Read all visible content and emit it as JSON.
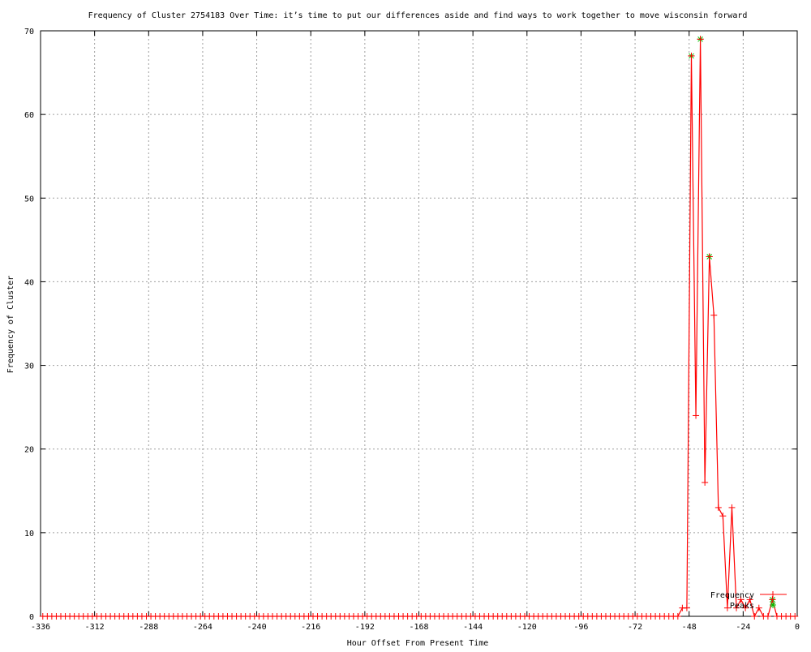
{
  "chart_data": {
    "type": "line",
    "title": "Frequency of Cluster 2754183 Over Time: it’s time to put our differences aside and find ways to work together to move wisconsin forward",
    "xlabel": "Hour Offset From Present Time",
    "ylabel": "Frequency of Cluster",
    "xlim": [
      -336,
      0
    ],
    "ylim": [
      0,
      70
    ],
    "xticks": [
      -336,
      -312,
      -288,
      -264,
      -240,
      -216,
      -192,
      -168,
      -144,
      -120,
      -96,
      -72,
      -48,
      -24,
      0
    ],
    "yticks": [
      0,
      10,
      20,
      30,
      40,
      50,
      60,
      70
    ],
    "grid": true,
    "legend_placement": "bottom-right",
    "colors": {
      "frequency": "#ff0000",
      "peaks": "#00c000",
      "grid": "#a0a0a0"
    },
    "series": [
      {
        "name": "Frequency",
        "x_start": -335,
        "x_step": 2,
        "nonzero": {
          "-51": 1,
          "-49": 1,
          "-47": 67,
          "-45": 24,
          "-43": 69,
          "-41": 16,
          "-39": 43,
          "-37": 36,
          "-35": 13,
          "-33": 12,
          "-31": 1,
          "-29": 13,
          "-27": 1,
          "-25": 2,
          "-23": 1,
          "-21": 2,
          "-17": 1,
          "-11": 2
        }
      },
      {
        "name": "Peaks",
        "points": [
          [
            -47,
            67
          ],
          [
            -43,
            69
          ],
          [
            -39,
            43
          ],
          [
            -11,
            2
          ]
        ]
      }
    ]
  }
}
